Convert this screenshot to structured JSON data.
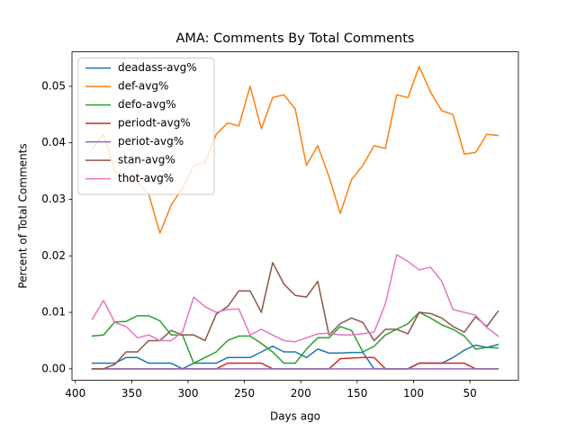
{
  "chart_data": {
    "type": "line",
    "title": "AMA: Comments By Total Comments",
    "x_label": "Days ago",
    "y_label": "Percent of Total Comments",
    "x": [
      385,
      375,
      365,
      355,
      345,
      335,
      325,
      315,
      305,
      295,
      285,
      275,
      265,
      255,
      245,
      235,
      225,
      215,
      205,
      195,
      185,
      175,
      165,
      155,
      145,
      135,
      125,
      115,
      105,
      95,
      85,
      75,
      65,
      55,
      45,
      35,
      25
    ],
    "xlim": [
      403,
      7
    ],
    "xticks": [
      400,
      350,
      300,
      250,
      200,
      150,
      100,
      50
    ],
    "ylim": [
      -0.002,
      0.0561
    ],
    "yticks": [
      {
        "value": 0,
        "label": "0.00"
      },
      0.01,
      0.02,
      0.03,
      0.04,
      0.05
    ],
    "legend": "upper left",
    "series": [
      {
        "name": "deadass-avg%",
        "color": "#1f77b4",
        "values": [
          0.001,
          0.001,
          0.001,
          0.002,
          0.002,
          0.001,
          0.001,
          0.001,
          0,
          0.001,
          0.001,
          0.001,
          0.002,
          0.002,
          0.002,
          0.003,
          0.004,
          0.003,
          0.003,
          0.002,
          0.0035,
          0.0028,
          0.0028,
          0.0029,
          0.0029,
          0,
          0,
          0,
          0,
          0.001,
          0.001,
          0.001,
          0.002,
          0.0033,
          0.0042,
          0.0038,
          0.0043
        ]
      },
      {
        "name": "def-avg%",
        "color": "#ff7f0e",
        "values": [
          0.039,
          0.0415,
          0.035,
          0.034,
          0.033,
          0.031,
          0.024,
          0.029,
          0.032,
          0.036,
          0.0365,
          0.0415,
          0.0435,
          0.043,
          0.05,
          0.0425,
          0.048,
          0.0485,
          0.046,
          0.036,
          0.0395,
          0.034,
          0.0275,
          0.0335,
          0.036,
          0.0395,
          0.039,
          0.0485,
          0.048,
          0.0535,
          0.049,
          0.0457,
          0.045,
          0.038,
          0.0383,
          0.0415,
          0.0413
        ]
      },
      {
        "name": "defo-avg%",
        "color": "#2ca02c",
        "values": [
          0.0058,
          0.006,
          0.0083,
          0.0084,
          0.0094,
          0.0094,
          0.0085,
          0.006,
          0.006,
          0.001,
          0.002,
          0.003,
          0.005,
          0.0058,
          0.0058,
          0.0045,
          0.003,
          0.001,
          0.001,
          0.0035,
          0.0055,
          0.0055,
          0.0075,
          0.0068,
          0.003,
          0.004,
          0.006,
          0.007,
          0.008,
          0.01,
          0.009,
          0.0078,
          0.007,
          0.0058,
          0.0035,
          0.0038,
          0.0037
        ]
      },
      {
        "name": "periodt-avg%",
        "color": "#d62728",
        "values": [
          0,
          0,
          0,
          0,
          0,
          0,
          0,
          0,
          0,
          0,
          0,
          0,
          0.001,
          0.001,
          0.001,
          0.001,
          0,
          0,
          0,
          0,
          0,
          0,
          0.0018,
          0.0019,
          0.002,
          0.002,
          0,
          0,
          0,
          0.001,
          0.001,
          0.001,
          0.001,
          0.001,
          0,
          0,
          0
        ]
      },
      {
        "name": "periot-avg%",
        "color": "#9467bd",
        "values": [
          0,
          0,
          0,
          0,
          0,
          0,
          0,
          0,
          0,
          0,
          0,
          0,
          0,
          0,
          0,
          0,
          0,
          0,
          0,
          0,
          0,
          0,
          0,
          0,
          0,
          0,
          0,
          0,
          0,
          0,
          0,
          0,
          0,
          0,
          0,
          0,
          0
        ]
      },
      {
        "name": "stan-avg%",
        "color": "#8c564b",
        "values": [
          0,
          0,
          0.0008,
          0.003,
          0.003,
          0.005,
          0.005,
          0.0068,
          0.006,
          0.006,
          0.005,
          0.0097,
          0.011,
          0.0138,
          0.0138,
          0.01,
          0.0188,
          0.015,
          0.013,
          0.0127,
          0.0155,
          0.006,
          0.008,
          0.009,
          0.0082,
          0.005,
          0.007,
          0.007,
          0.0062,
          0.01,
          0.0098,
          0.009,
          0.0075,
          0.0065,
          0.0092,
          0.0075,
          0.0102
        ]
      },
      {
        "name": "thot-avg%",
        "color": "#e377c2",
        "values": [
          0.0088,
          0.0121,
          0.0082,
          0.0075,
          0.0055,
          0.006,
          0.005,
          0.005,
          0.0065,
          0.0127,
          0.011,
          0.01,
          0.0105,
          0.0106,
          0.006,
          0.007,
          0.006,
          0.005,
          0.0048,
          0.0055,
          0.0062,
          0.0063,
          0.006,
          0.006,
          0.0062,
          0.0065,
          0.0115,
          0.0202,
          0.019,
          0.0175,
          0.018,
          0.0155,
          0.0105,
          0.01,
          0.0095,
          0.0073,
          0.0058
        ]
      }
    ]
  }
}
